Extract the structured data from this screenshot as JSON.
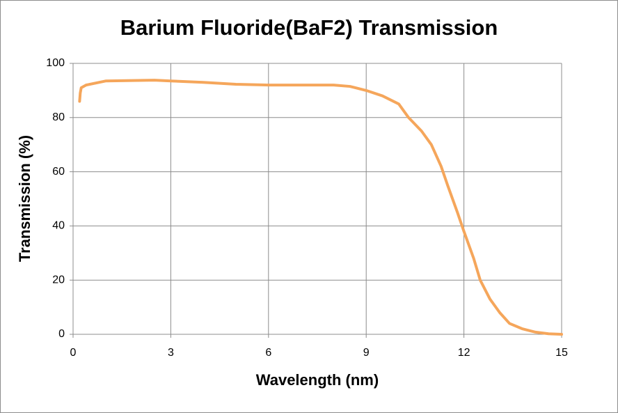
{
  "chart_data": {
    "type": "line",
    "title": "Barium Fluoride(BaF2) Transmission",
    "x_label": "Wavelength (nm)",
    "y_label": "Transmission (%)",
    "xlim": [
      0,
      15
    ],
    "xticks": [
      0,
      3,
      6,
      9,
      12,
      15
    ],
    "ylim": [
      0,
      100
    ],
    "yticks": [
      0,
      20,
      40,
      60,
      80,
      100
    ],
    "grid": true,
    "series": [
      {
        "name": "BaF2",
        "color": "#f5a65b",
        "x": [
          0.2,
          0.22,
          0.25,
          0.4,
          1,
          2.5,
          3,
          4,
          5,
          6,
          7,
          8,
          8.5,
          9,
          9.5,
          10,
          10.3,
          10.7,
          11,
          11.3,
          11.5,
          11.8,
          12,
          12.3,
          12.5,
          12.8,
          13.1,
          13.4,
          13.8,
          14.2,
          14.6,
          15
        ],
        "values": [
          86,
          89,
          91,
          92,
          93.5,
          93.8,
          93.5,
          93,
          92.3,
          92,
          92,
          92,
          91.5,
          90,
          88,
          85,
          80,
          75,
          70,
          62,
          55,
          45,
          38,
          28,
          20,
          13,
          8,
          4,
          2,
          0.8,
          0.2,
          0
        ]
      }
    ]
  }
}
